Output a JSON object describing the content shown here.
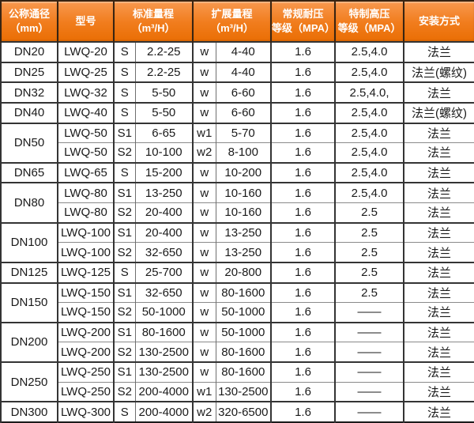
{
  "colors": {
    "header_gradient_top": "#f8994f",
    "header_gradient_mid": "#f17d1e",
    "header_gradient_bottom": "#ea6e04",
    "header_text": "#ffffff",
    "grid_line": "#343434",
    "sub_grid_line": "#8a8a8a",
    "outer_border": "#1b1b1b",
    "cell_text": "#1a1a1a",
    "cell_background": "#ffffff"
  },
  "header": {
    "diameter": [
      "公称通径",
      "（mm）"
    ],
    "model": "型号",
    "standard": [
      "标准量程",
      "（m³/H）"
    ],
    "extended": [
      "扩展量程",
      "（m³/H）"
    ],
    "regular": [
      "常规耐压",
      "等级（MPA）"
    ],
    "special": [
      "特制高压",
      "等级（MPA）"
    ],
    "install": "安装方式"
  },
  "chart_data": {
    "type": "table",
    "columns": [
      "公称通径（mm）",
      "型号",
      "标准量程（m³/H）",
      "扩展量程（m³/H）",
      "常规耐压等级（MPA）",
      "特制高压等级（MPA）",
      "安装方式"
    ],
    "merge_note": "rows with empty dn share the diameter cell of the previous row (merged cell)",
    "rows": [
      {
        "dn": "DN20",
        "model": "LWQ-20",
        "std_code": "S",
        "std_range": "2.2-25",
        "ext_code": "w",
        "ext_range": "4-40",
        "regular": "1.6",
        "special": "2.5,4.0",
        "install": "法兰"
      },
      {
        "dn": "DN25",
        "model": "LWQ-25",
        "std_code": "S",
        "std_range": "2.2-25",
        "ext_code": "w",
        "ext_range": "4-40",
        "regular": "1.6",
        "special": "2.5,4.0",
        "install": "法兰(螺纹)"
      },
      {
        "dn": "DN32",
        "model": "LWQ-32",
        "std_code": "S",
        "std_range": "5-50",
        "ext_code": "w",
        "ext_range": "6-60",
        "regular": "1.6",
        "special": "2.5,4.0,",
        "install": "法兰"
      },
      {
        "dn": "DN40",
        "model": "LWQ-40",
        "std_code": "S",
        "std_range": "5-50",
        "ext_code": "w",
        "ext_range": "6-60",
        "regular": "1.6",
        "special": "2.5,4.0",
        "install": "法兰(螺纹)"
      },
      {
        "dn": "DN50",
        "model": "LWQ-50",
        "std_code": "S1",
        "std_range": "6-65",
        "ext_code": "w1",
        "ext_range": "5-70",
        "regular": "1.6",
        "special": "2.5,4.0",
        "install": "法兰"
      },
      {
        "dn": "",
        "model": "LWQ-50",
        "std_code": "S2",
        "std_range": "10-100",
        "ext_code": "w2",
        "ext_range": "8-100",
        "regular": "1.6",
        "special": "2.5,4.0",
        "install": "法兰"
      },
      {
        "dn": "DN65",
        "model": "LWQ-65",
        "std_code": "S",
        "std_range": "15-200",
        "ext_code": "w",
        "ext_range": "10-200",
        "regular": "1.6",
        "special": "2.5,4.0",
        "install": "法兰"
      },
      {
        "dn": "DN80",
        "model": "LWQ-80",
        "std_code": "S1",
        "std_range": "13-250",
        "ext_code": "w",
        "ext_range": "10-160",
        "regular": "1.6",
        "special": "2.5,4.0",
        "install": "法兰"
      },
      {
        "dn": "",
        "model": "LWQ-80",
        "std_code": "S2",
        "std_range": "20-400",
        "ext_code": "w",
        "ext_range": "10-160",
        "regular": "1.6",
        "special": "2.5",
        "install": "法兰"
      },
      {
        "dn": "DN100",
        "model": "LWQ-100",
        "std_code": "S1",
        "std_range": "20-400",
        "ext_code": "w",
        "ext_range": "13-250",
        "regular": "1.6",
        "special": "2.5",
        "install": "法兰"
      },
      {
        "dn": "",
        "model": "LWQ-100",
        "std_code": "S2",
        "std_range": "32-650",
        "ext_code": "w",
        "ext_range": "13-250",
        "regular": "1.6",
        "special": "2.5",
        "install": "法兰"
      },
      {
        "dn": "DN125",
        "model": "LWQ-125",
        "std_code": "S",
        "std_range": "25-700",
        "ext_code": "w",
        "ext_range": "20-800",
        "regular": "1.6",
        "special": "2.5",
        "install": "法兰"
      },
      {
        "dn": "DN150",
        "model": "LWQ-150",
        "std_code": "S1",
        "std_range": "32-650",
        "ext_code": "w",
        "ext_range": "80-1600",
        "regular": "1.6",
        "special": "2.5",
        "install": "法兰"
      },
      {
        "dn": "",
        "model": "LWQ-150",
        "std_code": "S2",
        "std_range": "50-1000",
        "ext_code": "w",
        "ext_range": "50-1000",
        "regular": "1.6",
        "special": "——",
        "install": "法兰"
      },
      {
        "dn": "DN200",
        "model": "LWQ-200",
        "std_code": "S1",
        "std_range": "80-1600",
        "ext_code": "w",
        "ext_range": "50-1000",
        "regular": "1.6",
        "special": "——",
        "install": "法兰"
      },
      {
        "dn": "",
        "model": "LWQ-200",
        "std_code": "S2",
        "std_range": "130-2500",
        "ext_code": "w",
        "ext_range": "80-1600",
        "regular": "1.6",
        "special": "——",
        "install": "法兰"
      },
      {
        "dn": "DN250",
        "model": "LWQ-250",
        "std_code": "S1",
        "std_range": "130-2500",
        "ext_code": "w",
        "ext_range": "80-1600",
        "regular": "1.6",
        "special": "——",
        "install": "法兰"
      },
      {
        "dn": "",
        "model": "LWQ-250",
        "std_code": "S2",
        "std_range": "200-4000",
        "ext_code": "w1",
        "ext_range": "130-2500",
        "regular": "1.6",
        "special": "——",
        "install": "法兰"
      },
      {
        "dn": "DN300",
        "model": "LWQ-300",
        "std_code": "S",
        "std_range": "200-4000",
        "ext_code": "w2",
        "ext_range": "320-6500",
        "regular": "1.6",
        "special": "——",
        "install": "法兰"
      }
    ]
  }
}
